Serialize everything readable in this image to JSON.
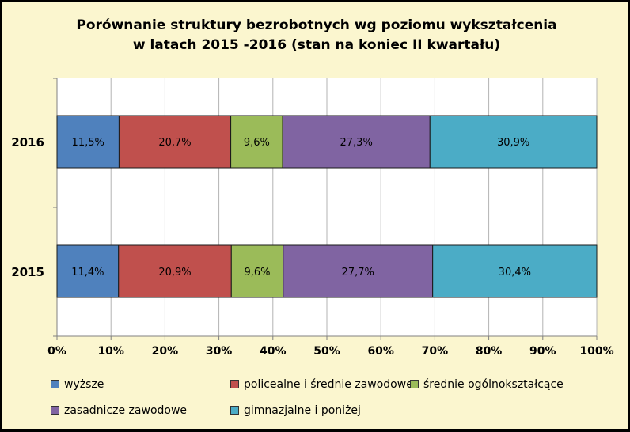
{
  "chart_data": {
    "type": "bar",
    "orientation": "horizontal",
    "stacked": true,
    "title_lines": [
      "Porównanie struktury bezrobotnych wg poziomu wykształcenia",
      "w latach 2015 -2016 (stan na koniec II kwartału)"
    ],
    "categories": [
      "2016",
      "2015"
    ],
    "series": [
      {
        "name": "wyższe",
        "color": "#4F81BD",
        "values": [
          11.5,
          11.4
        ],
        "labels": [
          "11,5%",
          "11,4%"
        ]
      },
      {
        "name": "policealne i średnie zawodowe",
        "color": "#C0504D",
        "values": [
          20.7,
          20.9
        ],
        "labels": [
          "20,7%",
          "20,9%"
        ]
      },
      {
        "name": "średnie ogólnokształcące",
        "color": "#9BBB59",
        "values": [
          9.6,
          9.6
        ],
        "labels": [
          "9,6%",
          "9,6%"
        ]
      },
      {
        "name": "zasadnicze zawodowe",
        "color": "#8064A2",
        "values": [
          27.3,
          27.7
        ],
        "labels": [
          "27,3%",
          "27,7%"
        ]
      },
      {
        "name": "gimnazjalne i poniżej",
        "color": "#4BACC6",
        "values": [
          30.9,
          30.4
        ],
        "labels": [
          "30,9%",
          "30,4%"
        ]
      }
    ],
    "xlim": [
      0,
      100
    ],
    "x_ticks": [
      "0%",
      "10%",
      "20%",
      "30%",
      "40%",
      "50%",
      "60%",
      "70%",
      "80%",
      "90%",
      "100%"
    ],
    "grid": true,
    "legend_position": "bottom",
    "background_color": "#FBF6CF",
    "plot_background_color": "#FFFFFF"
  }
}
